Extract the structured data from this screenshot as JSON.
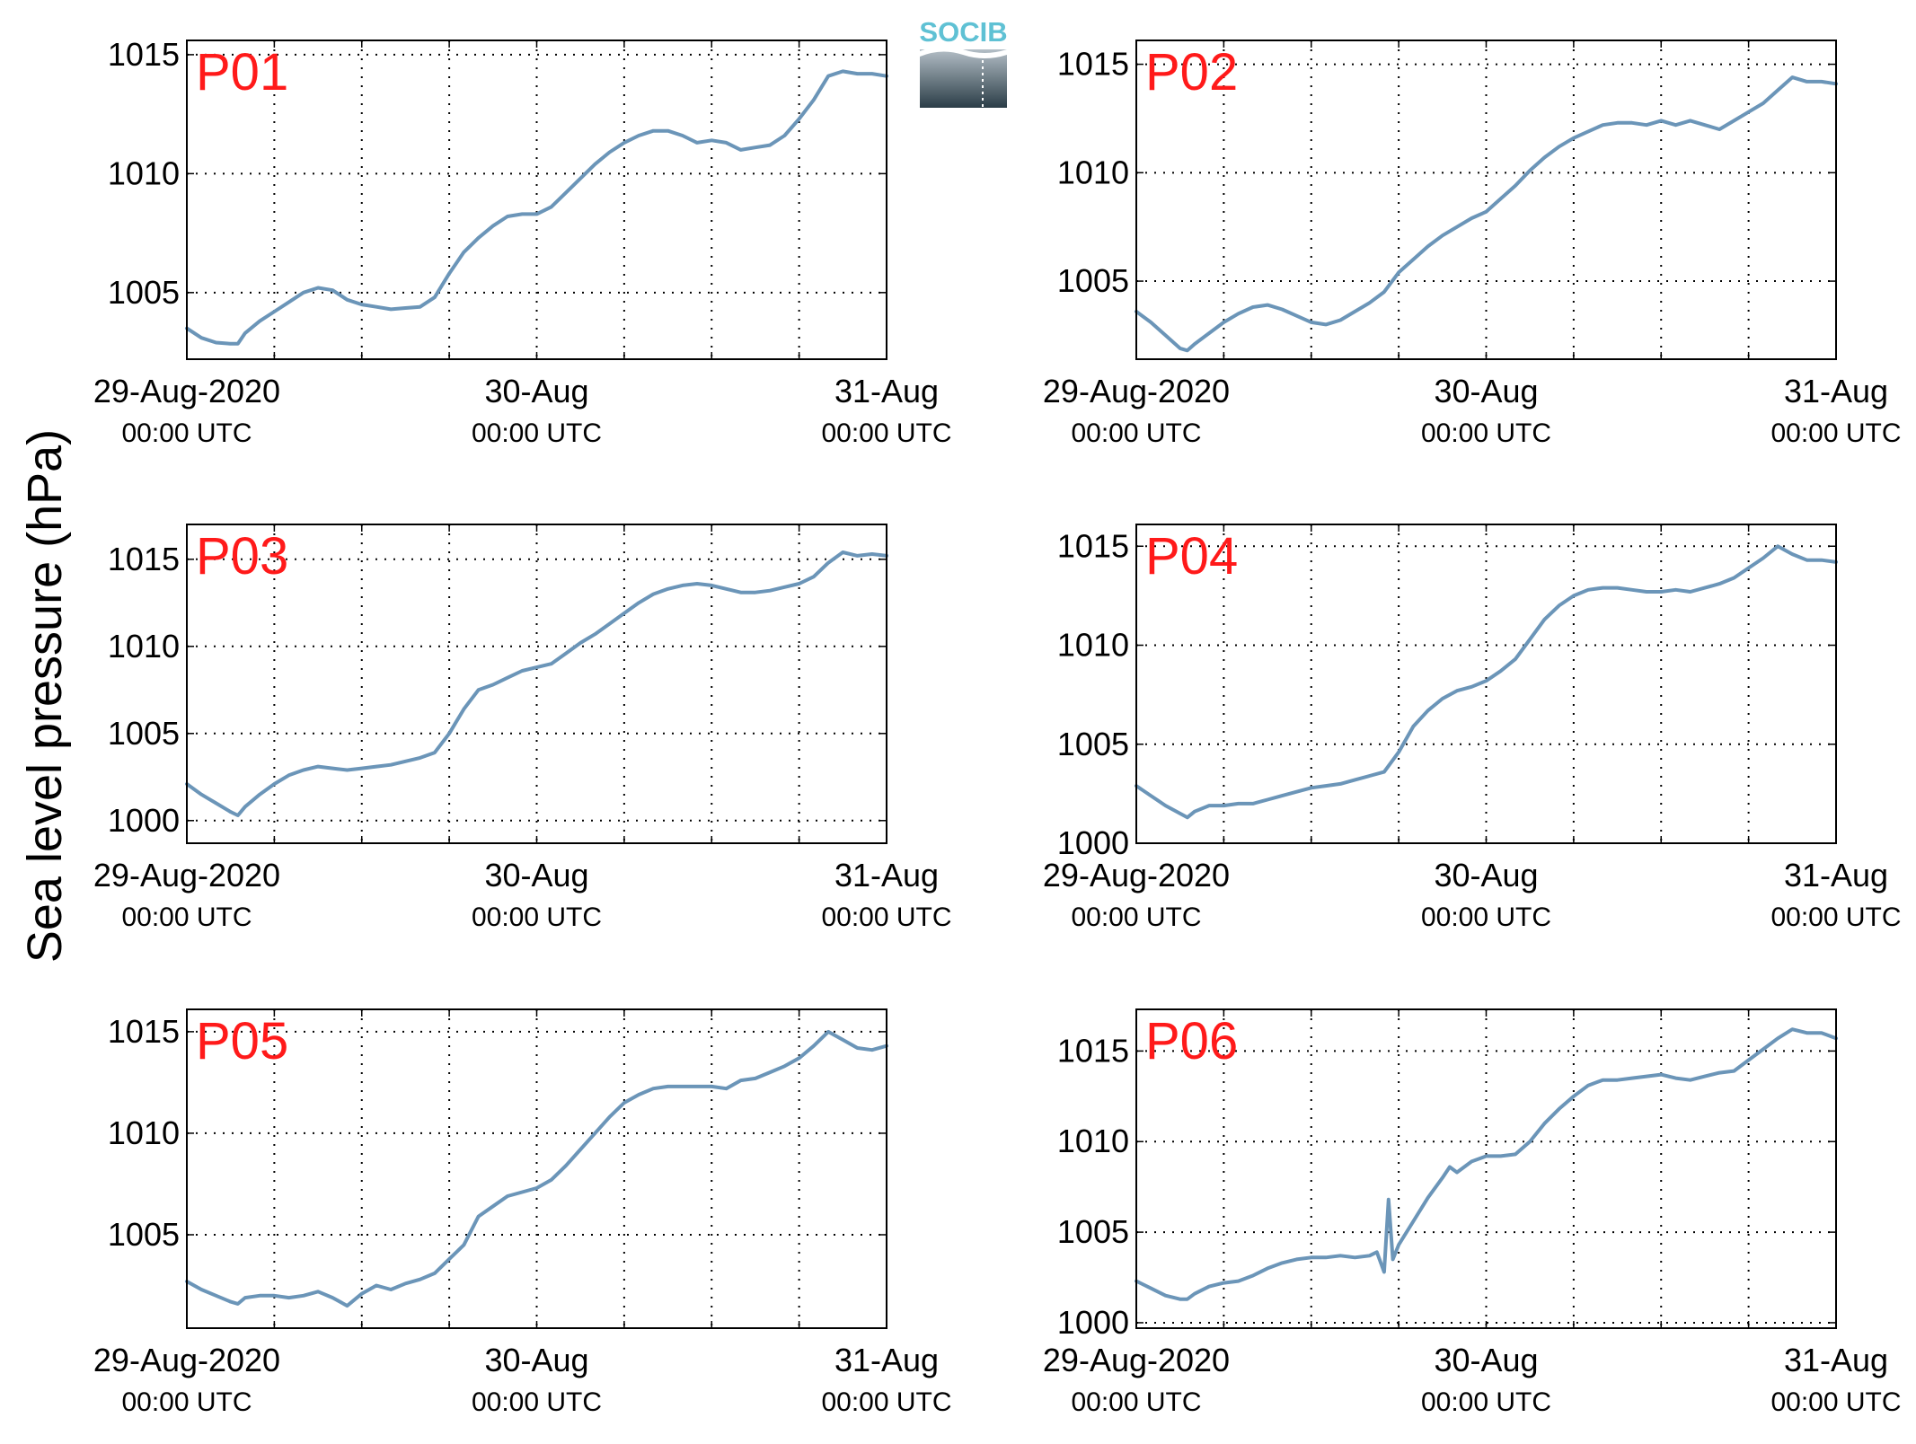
{
  "figure": {
    "ylabel": "Sea level pressure (hPa)",
    "logo_text": "SOCIB"
  },
  "colors": {
    "line": "#6b95b8",
    "panel_label": "#ff1a1a",
    "grid": "#000000",
    "logo_text": "#5fc1d4",
    "logo_top": "#b3bec6",
    "logo_bottom": "#2b3d47"
  },
  "chart_data": [
    {
      "type": "line",
      "label": "P01",
      "xlim": [
        0,
        48
      ],
      "ylim": [
        1002.2,
        1015.6
      ],
      "yticks": [
        "1005",
        "1010",
        "1015"
      ],
      "xticks": [
        {
          "main": "29-Aug-2020",
          "sub": "00:00 UTC"
        },
        {
          "main": "30-Aug",
          "sub": "00:00 UTC"
        },
        {
          "main": "31-Aug",
          "sub": "00:00 UTC"
        }
      ],
      "series": [
        {
          "x": [
            0,
            1,
            2,
            3,
            3.5,
            4,
            5,
            6,
            7,
            8,
            9,
            10,
            11,
            12,
            13,
            14,
            15,
            16,
            17,
            18,
            19,
            20,
            21,
            22,
            23,
            24,
            25,
            26,
            27,
            28,
            29,
            30,
            31,
            32,
            33,
            34,
            35,
            36,
            37,
            38,
            39,
            40,
            41,
            42,
            43,
            44,
            45,
            46,
            47,
            48
          ],
          "y": [
            1003.5,
            1003.1,
            1002.9,
            1002.85,
            1002.85,
            1003.3,
            1003.8,
            1004.2,
            1004.6,
            1005.0,
            1005.2,
            1005.1,
            1004.7,
            1004.5,
            1004.4,
            1004.3,
            1004.35,
            1004.4,
            1004.8,
            1005.8,
            1006.7,
            1007.3,
            1007.8,
            1008.2,
            1008.3,
            1008.3,
            1008.6,
            1009.2,
            1009.8,
            1010.4,
            1010.9,
            1011.3,
            1011.6,
            1011.8,
            1011.8,
            1011.6,
            1011.3,
            1011.4,
            1011.3,
            1011.0,
            1011.1,
            1011.2,
            1011.6,
            1012.3,
            1013.1,
            1014.1,
            1014.3,
            1014.2,
            1014.2,
            1014.1
          ]
        }
      ]
    },
    {
      "type": "line",
      "label": "P02",
      "xlim": [
        0,
        48
      ],
      "ylim": [
        1001.4,
        1016.1
      ],
      "yticks": [
        "1005",
        "1010",
        "1015"
      ],
      "xticks": [
        {
          "main": "29-Aug-2020",
          "sub": "00:00 UTC"
        },
        {
          "main": "30-Aug",
          "sub": "00:00 UTC"
        },
        {
          "main": "31-Aug",
          "sub": "00:00 UTC"
        }
      ],
      "series": [
        {
          "x": [
            0,
            1,
            2,
            3,
            3.5,
            4,
            5,
            6,
            7,
            8,
            9,
            10,
            11,
            12,
            13,
            14,
            15,
            16,
            17,
            18,
            19,
            20,
            21,
            22,
            23,
            24,
            25,
            26,
            27,
            28,
            29,
            30,
            31,
            32,
            33,
            34,
            35,
            36,
            37,
            38,
            39,
            40,
            41,
            42,
            43,
            44,
            45,
            46,
            47,
            48
          ],
          "y": [
            1003.6,
            1003.1,
            1002.5,
            1001.9,
            1001.8,
            1002.1,
            1002.6,
            1003.1,
            1003.5,
            1003.8,
            1003.9,
            1003.7,
            1003.4,
            1003.1,
            1003.0,
            1003.2,
            1003.6,
            1004.0,
            1004.5,
            1005.4,
            1006.0,
            1006.6,
            1007.1,
            1007.5,
            1007.9,
            1008.2,
            1008.8,
            1009.4,
            1010.1,
            1010.7,
            1011.2,
            1011.6,
            1011.9,
            1012.2,
            1012.3,
            1012.3,
            1012.2,
            1012.4,
            1012.2,
            1012.4,
            1012.2,
            1012.0,
            1012.4,
            1012.8,
            1013.2,
            1013.8,
            1014.4,
            1014.2,
            1014.2,
            1014.1
          ]
        }
      ]
    },
    {
      "type": "line",
      "label": "P03",
      "xlim": [
        0,
        48
      ],
      "ylim": [
        998.7,
        1017.0
      ],
      "yticks": [
        "1000",
        "1005",
        "1010",
        "1015"
      ],
      "xticks": [
        {
          "main": "29-Aug-2020",
          "sub": "00:00 UTC"
        },
        {
          "main": "30-Aug",
          "sub": "00:00 UTC"
        },
        {
          "main": "31-Aug",
          "sub": "00:00 UTC"
        }
      ],
      "series": [
        {
          "x": [
            0,
            1,
            2,
            3,
            3.5,
            4,
            5,
            6,
            7,
            8,
            9,
            10,
            11,
            12,
            13,
            14,
            15,
            16,
            17,
            18,
            19,
            20,
            21,
            22,
            23,
            24,
            25,
            26,
            27,
            28,
            29,
            30,
            31,
            32,
            33,
            34,
            35,
            36,
            37,
            38,
            39,
            40,
            41,
            42,
            43,
            44,
            45,
            46,
            47,
            48
          ],
          "y": [
            1002.1,
            1001.5,
            1001.0,
            1000.5,
            1000.3,
            1000.8,
            1001.5,
            1002.1,
            1002.6,
            1002.9,
            1003.1,
            1003.0,
            1002.9,
            1003.0,
            1003.1,
            1003.2,
            1003.4,
            1003.6,
            1003.9,
            1005.0,
            1006.4,
            1007.5,
            1007.8,
            1008.2,
            1008.6,
            1008.8,
            1009.0,
            1009.6,
            1010.2,
            1010.7,
            1011.3,
            1011.9,
            1012.5,
            1013.0,
            1013.3,
            1013.5,
            1013.6,
            1013.5,
            1013.3,
            1013.1,
            1013.1,
            1013.2,
            1013.4,
            1013.6,
            1014.0,
            1014.8,
            1015.4,
            1015.2,
            1015.3,
            1015.2
          ]
        }
      ]
    },
    {
      "type": "line",
      "label": "P04",
      "xlim": [
        0,
        48
      ],
      "ylim": [
        1000.0,
        1016.1
      ],
      "yticks": [
        "1000",
        "1005",
        "1010",
        "1015"
      ],
      "xticks": [
        {
          "main": "29-Aug-2020",
          "sub": "00:00 UTC"
        },
        {
          "main": "30-Aug",
          "sub": "00:00 UTC"
        },
        {
          "main": "31-Aug",
          "sub": "00:00 UTC"
        }
      ],
      "series": [
        {
          "x": [
            0,
            1,
            2,
            3,
            3.5,
            4,
            5,
            6,
            7,
            8,
            9,
            10,
            11,
            12,
            13,
            14,
            15,
            16,
            17,
            18,
            19,
            20,
            21,
            22,
            23,
            24,
            25,
            26,
            27,
            28,
            29,
            30,
            31,
            32,
            33,
            34,
            35,
            36,
            37,
            38,
            39,
            40,
            41,
            42,
            43,
            44,
            45,
            46,
            47,
            48
          ],
          "y": [
            1002.9,
            1002.4,
            1001.9,
            1001.5,
            1001.3,
            1001.6,
            1001.9,
            1001.9,
            1002.0,
            1002.0,
            1002.2,
            1002.4,
            1002.6,
            1002.8,
            1002.9,
            1003.0,
            1003.2,
            1003.4,
            1003.6,
            1004.6,
            1005.9,
            1006.7,
            1007.3,
            1007.7,
            1007.9,
            1008.2,
            1008.7,
            1009.3,
            1010.3,
            1011.3,
            1012.0,
            1012.5,
            1012.8,
            1012.9,
            1012.9,
            1012.8,
            1012.7,
            1012.7,
            1012.8,
            1012.7,
            1012.9,
            1013.1,
            1013.4,
            1013.9,
            1014.4,
            1015.0,
            1014.6,
            1014.3,
            1014.3,
            1014.2
          ]
        }
      ]
    },
    {
      "type": "line",
      "label": "P05",
      "xlim": [
        0,
        48
      ],
      "ylim": [
        1000.4,
        1016.1
      ],
      "yticks": [
        "1005",
        "1010",
        "1015"
      ],
      "xticks": [
        {
          "main": "29-Aug-2020",
          "sub": "00:00 UTC"
        },
        {
          "main": "30-Aug",
          "sub": "00:00 UTC"
        },
        {
          "main": "31-Aug",
          "sub": "00:00 UTC"
        }
      ],
      "series": [
        {
          "x": [
            0,
            1,
            2,
            3,
            3.5,
            4,
            5,
            6,
            7,
            8,
            9,
            10,
            11,
            12,
            13,
            14,
            15,
            16,
            17,
            18,
            19,
            20,
            21,
            22,
            23,
            24,
            25,
            26,
            27,
            28,
            29,
            30,
            31,
            32,
            33,
            34,
            35,
            36,
            37,
            38,
            39,
            40,
            41,
            42,
            43,
            44,
            45,
            46,
            47,
            48
          ],
          "y": [
            1002.7,
            1002.3,
            1002.0,
            1001.7,
            1001.6,
            1001.9,
            1002.0,
            1002.0,
            1001.9,
            1002.0,
            1002.2,
            1001.9,
            1001.5,
            1002.1,
            1002.5,
            1002.3,
            1002.6,
            1002.8,
            1003.1,
            1003.8,
            1004.5,
            1005.9,
            1006.4,
            1006.9,
            1007.1,
            1007.3,
            1007.7,
            1008.4,
            1009.2,
            1010.0,
            1010.8,
            1011.5,
            1011.9,
            1012.2,
            1012.3,
            1012.3,
            1012.3,
            1012.3,
            1012.2,
            1012.6,
            1012.7,
            1013.0,
            1013.3,
            1013.7,
            1014.3,
            1015.0,
            1014.6,
            1014.2,
            1014.1,
            1014.3
          ]
        }
      ]
    },
    {
      "type": "line",
      "label": "P06",
      "xlim": [
        0,
        48
      ],
      "ylim": [
        999.7,
        1017.3
      ],
      "yticks": [
        "1000",
        "1005",
        "1010",
        "1015"
      ],
      "xticks": [
        {
          "main": "29-Aug-2020",
          "sub": "00:00 UTC"
        },
        {
          "main": "30-Aug",
          "sub": "00:00 UTC"
        },
        {
          "main": "31-Aug",
          "sub": "00:00 UTC"
        }
      ],
      "series": [
        {
          "x": [
            0,
            1,
            2,
            3,
            3.5,
            4,
            5,
            6,
            7,
            8,
            9,
            10,
            11,
            12,
            13,
            14,
            15,
            16,
            16.5,
            17,
            17.3,
            17.6,
            18,
            19,
            20,
            21,
            21.5,
            22,
            23,
            24,
            25,
            26,
            27,
            28,
            29,
            30,
            31,
            32,
            33,
            34,
            35,
            36,
            37,
            38,
            39,
            40,
            41,
            42,
            43,
            44,
            45,
            46,
            47,
            48
          ],
          "y": [
            1002.3,
            1001.9,
            1001.5,
            1001.3,
            1001.3,
            1001.6,
            1002.0,
            1002.2,
            1002.3,
            1002.6,
            1003.0,
            1003.3,
            1003.5,
            1003.6,
            1003.6,
            1003.7,
            1003.6,
            1003.7,
            1003.9,
            1002.8,
            1006.8,
            1003.5,
            1004.3,
            1005.6,
            1006.9,
            1008.0,
            1008.6,
            1008.3,
            1008.9,
            1009.2,
            1009.2,
            1009.3,
            1010.0,
            1011.0,
            1011.8,
            1012.5,
            1013.1,
            1013.4,
            1013.4,
            1013.5,
            1013.6,
            1013.7,
            1013.5,
            1013.4,
            1013.6,
            1013.8,
            1013.9,
            1014.5,
            1015.1,
            1015.7,
            1016.2,
            1016.0,
            1016.0,
            1015.7
          ]
        }
      ]
    }
  ]
}
